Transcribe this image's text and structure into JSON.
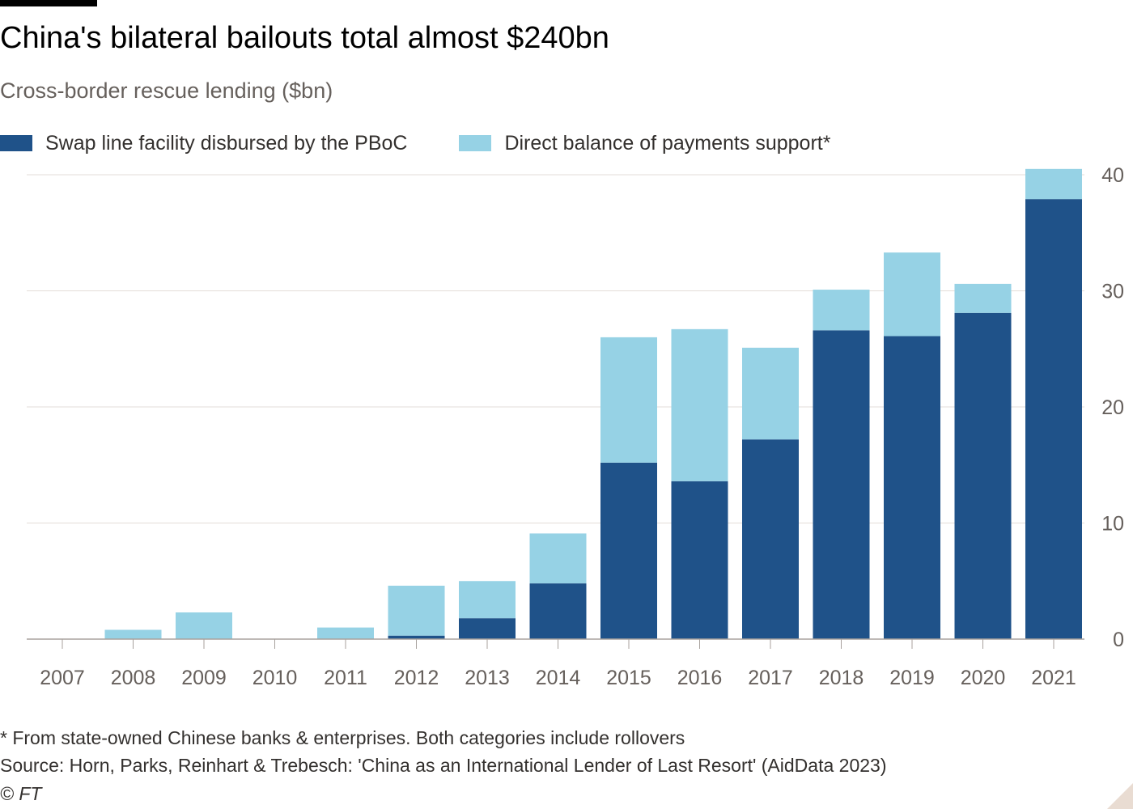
{
  "header": {
    "title": "China's bilateral bailouts total almost $240bn",
    "subtitle": "Cross-border rescue lending ($bn)"
  },
  "legend": {
    "items": [
      {
        "label": "Swap line facility disbursed by the PBoC",
        "color": "#1f5289"
      },
      {
        "label": "Direct balance of payments support*",
        "color": "#96d2e5"
      }
    ]
  },
  "footer": {
    "footnote": "* From state-owned Chinese banks & enterprises. Both categories include rollovers",
    "source": "Source: Horn, Parks, Reinhart & Trebesch: 'China as an International Lender of Last Resort' (AidData 2023)",
    "credit": "© FT"
  },
  "colors": {
    "swap": "#1f5289",
    "direct": "#96d2e5",
    "grid": "#e3ddd8",
    "axis": "#a8a29e",
    "tick_text": "#66605c"
  },
  "chart_data": {
    "type": "bar",
    "stacked": true,
    "title": "China's bilateral bailouts total almost $240bn",
    "subtitle": "Cross-border rescue lending ($bn)",
    "categories": [
      "2007",
      "2008",
      "2009",
      "2010",
      "2011",
      "2012",
      "2013",
      "2014",
      "2015",
      "2016",
      "2017",
      "2018",
      "2019",
      "2020",
      "2021"
    ],
    "series": [
      {
        "name": "Swap line facility disbursed by the PBoC",
        "values": [
          0,
          0,
          0,
          0,
          0,
          0.3,
          1.8,
          4.8,
          15.2,
          13.6,
          17.2,
          26.6,
          26.1,
          28.1,
          37.9
        ]
      },
      {
        "name": "Direct balance of payments support*",
        "values": [
          0,
          0.8,
          2.3,
          0,
          1.0,
          4.3,
          3.2,
          4.3,
          10.8,
          13.1,
          7.9,
          3.5,
          7.2,
          2.5,
          2.6
        ]
      }
    ],
    "yticks": [
      0,
      10,
      20,
      30,
      40
    ],
    "ylim": [
      0,
      40
    ],
    "y_axis_position": "right",
    "grid": true,
    "legend_position": "top-left"
  }
}
